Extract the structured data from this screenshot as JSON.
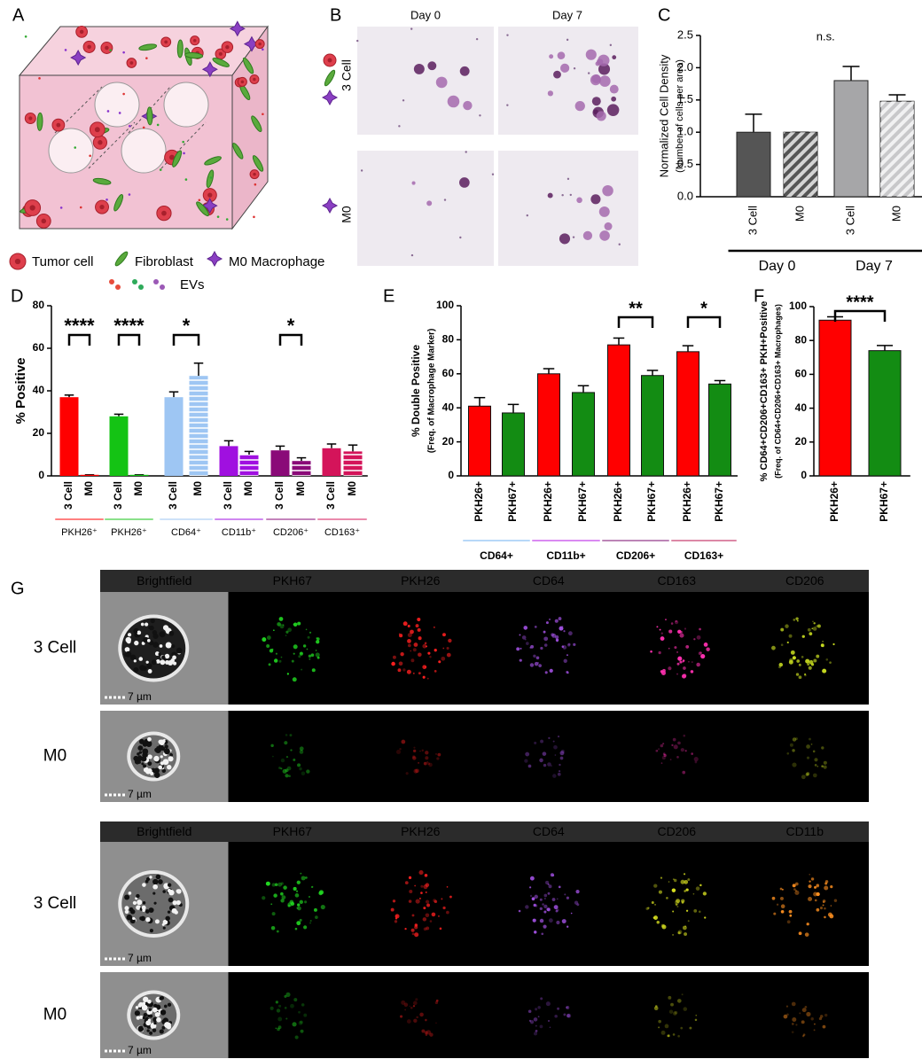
{
  "figure": {
    "panel_labels": [
      "A",
      "B",
      "C",
      "D",
      "E",
      "F",
      "G"
    ],
    "legend_a": [
      "Tumor cell",
      "Fibroblast",
      "M0 Macrophage",
      "EVs"
    ],
    "panel_b": {
      "columns": [
        "Day 0",
        "Day 7"
      ],
      "rows": [
        "3 Cell",
        "M0"
      ]
    },
    "panel_g": [
      {
        "columns": [
          "Brightfield",
          "PKH67",
          "PKH26",
          "CD64",
          "CD163",
          "CD206"
        ],
        "rows": [
          "3 Cell",
          "M0"
        ]
      },
      {
        "columns": [
          "Brightfield",
          "PKH67",
          "PKH26",
          "CD64",
          "CD206",
          "CD11b"
        ],
        "rows": [
          "3 Cell",
          "M0"
        ]
      }
    ],
    "scale_bar": "7 µm"
  },
  "chart_data": [
    {
      "type": "bar",
      "ylabel": [
        "Normalized Cell  Density",
        "(Number of cells per area)"
      ],
      "categories": [
        "3 Cell",
        "M0",
        "3 Cell",
        "M0"
      ],
      "groups": [
        "Day 0",
        "Day 7"
      ],
      "values": [
        1.0,
        1.0,
        1.8,
        1.48
      ],
      "errors": [
        0.28,
        0,
        0.22,
        0.1
      ],
      "colors": [
        "#555555",
        "#555555",
        "#a6a6a8",
        "#c8c8ca"
      ],
      "hatch": [
        false,
        true,
        false,
        true
      ],
      "group_colors": [
        "#000000",
        "#000000"
      ],
      "annotation": "n.s.",
      "ylim": [
        0,
        2.5
      ],
      "yticks": [
        {
          "value": 0,
          "label": "0.0"
        },
        0.5,
        {
          "value": 1,
          "label": "1.0"
        },
        1.5,
        {
          "value": 2,
          "label": "2.0"
        },
        2.5
      ]
    },
    {
      "type": "bar",
      "ylabel": [
        "% Positive"
      ],
      "categories": [
        "3 Cell",
        "M0",
        "3 Cell",
        "M0",
        "3 Cell",
        "M0",
        "3 Cell",
        "M0",
        "3 Cell",
        "M0",
        "3 Cell",
        "M0"
      ],
      "groups": [
        "PKH26⁺",
        "PKH26⁺",
        "CD64⁺",
        "CD11b⁺",
        "CD206⁺",
        "CD163⁺"
      ],
      "values": [
        37,
        0.5,
        28,
        0.5,
        37,
        47,
        14,
        10,
        12,
        7,
        13,
        11.5
      ],
      "errors": [
        1,
        0,
        1,
        0,
        2.5,
        6,
        2.5,
        1.5,
        2,
        1.5,
        2,
        3
      ],
      "colors": [
        "#ff0000",
        "#ff0000",
        "#14c314",
        "#14c314",
        "#9ec6f3",
        "#9ec6f3",
        "#a010e0",
        "#a010e0",
        "#8a0a78",
        "#8a0a78",
        "#d4145a",
        "#d4145a"
      ],
      "hatch": [
        false,
        false,
        false,
        false,
        false,
        true,
        false,
        true,
        false,
        true,
        false,
        true
      ],
      "group_colors": [
        "#ff0000",
        "#14c314",
        "#9ec6f3",
        "#a010e0",
        "#8a0a78",
        "#d4145a"
      ],
      "significance": [
        "****",
        "****",
        "*",
        null,
        "*",
        null
      ],
      "ylim": [
        0,
        80
      ],
      "yticks": [
        0,
        20,
        40,
        60,
        80
      ]
    },
    {
      "type": "bar",
      "ylabel": [
        "% Double Positive",
        "(Freq. of Macrophage Marker)"
      ],
      "categories": [
        "PKH26+",
        "PKH67+",
        "PKH26+",
        "PKH67+",
        "PKH26+",
        "PKH67+",
        "PKH26+",
        "PKH67+"
      ],
      "groups": [
        "CD64+",
        "CD11b+",
        "CD206+",
        "CD163+"
      ],
      "values": [
        41,
        37,
        60,
        49,
        77,
        59,
        73,
        54
      ],
      "errors": [
        5,
        5,
        3,
        4,
        4,
        3,
        3.5,
        2
      ],
      "colors": [
        "#ff0000",
        "#138c13",
        "#ff0000",
        "#138c13",
        "#ff0000",
        "#138c13",
        "#ff0000",
        "#138c13"
      ],
      "hatch": [
        false,
        false,
        false,
        false,
        false,
        false,
        false,
        false
      ],
      "group_colors": [
        "#6fb0f0",
        "#b414e6",
        "#7a0a6e",
        "#b8104e"
      ],
      "color_group_labels": true,
      "significance": [
        null,
        null,
        "**",
        "*"
      ],
      "ylim": [
        0,
        100
      ],
      "yticks": [
        0,
        20,
        40,
        60,
        80,
        100
      ]
    },
    {
      "type": "bar",
      "ylabel": [
        "% CD64+CD206+CD163+ PKH+Positive",
        "(Freq. of CD64+CD206+CD163+ Macrophages)"
      ],
      "categories": [
        "PKH26+",
        "PKH67+"
      ],
      "values": [
        92,
        74
      ],
      "errors": [
        2,
        3
      ],
      "colors": [
        "#ff0000",
        "#138c13"
      ],
      "hatch": [
        false,
        false
      ],
      "significance": [
        "****"
      ],
      "ylim": [
        0,
        100
      ],
      "yticks": [
        0,
        20,
        40,
        60,
        80,
        100
      ]
    }
  ]
}
